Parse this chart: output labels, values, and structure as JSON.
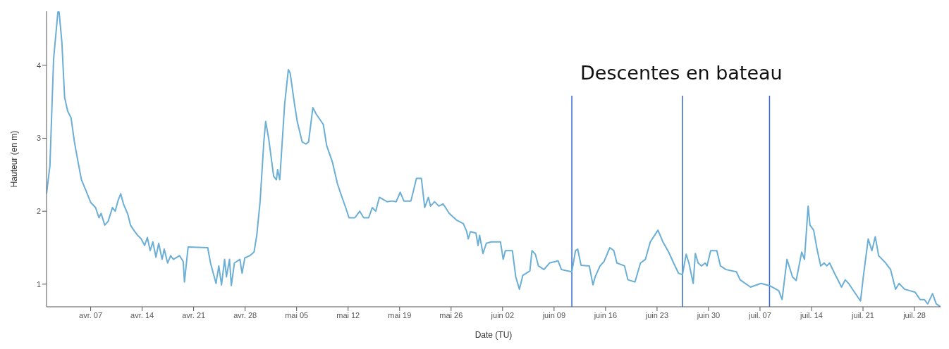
{
  "chart_data": {
    "type": "line",
    "xlabel": "Date (TU)",
    "ylabel": "Hauteur (en m)",
    "annotations": [
      "Descentes en bateau"
    ],
    "xlim": [
      "--04-01T00:00",
      "--07-31T13:00"
    ],
    "xticks": [
      {
        "value": "--04-07",
        "label": "avr. 07"
      },
      {
        "value": "--04-14",
        "label": "avr. 14"
      },
      {
        "value": "--04-21",
        "label": "avr. 21"
      },
      {
        "value": "--04-28",
        "label": "avr. 28"
      },
      {
        "value": "--05-05",
        "label": "mai 05"
      },
      {
        "value": "--05-12",
        "label": "mai 12"
      },
      {
        "value": "--05-19",
        "label": "mai 19"
      },
      {
        "value": "--05-26",
        "label": "mai 26"
      },
      {
        "value": "--06-02",
        "label": "juin 02"
      },
      {
        "value": "--06-09",
        "label": "juin 09"
      },
      {
        "value": "--06-16",
        "label": "juin 16"
      },
      {
        "value": "--06-23",
        "label": "juin 23"
      },
      {
        "value": "--06-30",
        "label": "juin 30"
      },
      {
        "value": "--07-07",
        "label": "juil. 07"
      },
      {
        "value": "--07-14",
        "label": "juil. 14"
      },
      {
        "value": "--07-21",
        "label": "juil. 21"
      },
      {
        "value": "--07-28",
        "label": "juil. 28"
      }
    ],
    "ylim": [
      0.69,
      4.74
    ],
    "yticks": [
      1,
      2,
      3,
      4
    ],
    "grid": false,
    "legend": false,
    "marker": "none",
    "line_style": "solid",
    "ref_lines": [
      {
        "axis": "x",
        "value": "--06-11T10:00",
        "color": "#3366cc"
      },
      {
        "axis": "x",
        "value": "--06-26T11:00",
        "color": "#3366cc"
      },
      {
        "axis": "x",
        "value": "--07-08T07:00",
        "color": "#3366cc"
      }
    ],
    "series": [
      {
        "color": "#6baed6",
        "x": [
          "--04-01T00:00",
          "--04-01T11:00",
          "--04-01T23:00",
          "--04-02T13:00",
          "--04-02T17:00",
          "--04-03T02:00",
          "--04-03T11:00",
          "--04-03T21:00",
          "--04-04T08:00",
          "--04-04T19:00",
          "--04-05T07:00",
          "--04-05T18:00",
          "--04-06T08:00",
          "--04-07T00:00",
          "--04-07T16:00",
          "--04-08T03:00",
          "--04-08T10:00",
          "--04-08T22:00",
          "--04-09T09:00",
          "--04-09T23:00",
          "--04-10T08:00",
          "--04-10T17:00",
          "--04-11T02:00",
          "--04-11T11:00",
          "--04-12T01:00",
          "--04-12T10:00",
          "--04-13T00:00",
          "--04-13T09:00",
          "--04-13T21:00",
          "--04-14T08:00",
          "--04-14T17:00",
          "--04-15T02:00",
          "--04-15T11:00",
          "--04-15T21:00",
          "--04-16T06:00",
          "--04-16T17:00",
          "--04-17T00:00",
          "--04-17T11:00",
          "--04-17T21:00",
          "--04-18T06:00",
          "--04-19T02:00",
          "--04-19T14:00",
          "--04-19T18:00",
          "--04-20T06:00",
          "--04-22T22:00",
          "--04-23T07:00",
          "--04-23T16:00",
          "--04-24T01:00",
          "--04-24T10:00",
          "--04-24T19:00",
          "--04-25T05:00",
          "--04-25T11:00",
          "--04-25T21:00",
          "--04-26T03:00",
          "--04-26T13:00",
          "--04-27T07:00",
          "--04-27T14:00",
          "--04-27T23:00",
          "--04-28T15:00",
          "--04-29T05:00",
          "--04-29T14:00",
          "--04-30T01:00",
          "--04-30T13:00",
          "--04-30T19:00",
          "--05-01T05:00",
          "--05-01T21:00",
          "--05-02T06:00",
          "--05-02T10:00",
          "--05-02T17:00",
          "--05-03T09:00",
          "--05-03T21:00",
          "--05-04T03:00",
          "--05-04T17:00",
          "--05-05T02:00",
          "--05-05T18:00",
          "--05-06T06:00",
          "--05-06T15:00",
          "--05-07T05:00",
          "--05-07T16:00",
          "--05-08T15:00",
          "--05-09T02:00",
          "--05-09T21:00",
          "--05-10T13:00",
          "--05-11T00:00",
          "--05-11T16:00",
          "--05-12T03:00",
          "--05-12T22:00",
          "--05-13T14:00",
          "--05-14T03:00",
          "--05-14T19:00",
          "--05-15T07:00",
          "--05-15T18:00",
          "--05-16T06:00",
          "--05-17T07:00",
          "--05-17T23:00",
          "--05-18T13:00",
          "--05-19T02:00",
          "--05-19T14:00",
          "--05-20T13:00",
          "--05-21T07:00",
          "--05-21T23:00",
          "--05-22T10:00",
          "--05-22T22:00",
          "--05-23T05:00",
          "--05-23T18:00",
          "--05-24T08:00",
          "--05-24T22:00",
          "--05-25T18:00",
          "--05-26T17:00",
          "--05-27T16:00",
          "--05-28T03:00",
          "--05-28T08:00",
          "--05-28T15:00",
          "--05-29T09:00",
          "--05-29T16:00",
          "--05-29T21:00",
          "--05-30T08:00",
          "--05-30T19:00",
          "--05-31T11:00",
          "--06-01T17:00",
          "--06-02T02:00",
          "--06-02T09:00",
          "--06-03T08:00",
          "--06-03T19:00",
          "--06-04T07:00",
          "--06-04T18:00",
          "--06-05T17:00",
          "--06-06T00:00",
          "--06-06T11:00",
          "--06-06T21:00",
          "--06-07T15:00",
          "--06-08T09:00",
          "--06-09T13:00",
          "--06-10T00:00",
          "--06-11T10:00",
          "--06-11T22:00",
          "--06-12T05:00",
          "--06-12T16:00",
          "--06-13T19:00",
          "--06-14T07:00",
          "--06-14T14:00",
          "--06-15T06:00",
          "--06-15T19:00",
          "--06-16T14:00",
          "--06-17T03:00",
          "--06-17T13:00",
          "--06-18T14:00",
          "--06-19T01:00",
          "--06-20T00:00",
          "--06-20T18:00",
          "--06-21T10:00",
          "--06-22T02:00",
          "--06-23T03:00",
          "--06-23T19:00",
          "--06-24T14:00",
          "--06-25T06:00",
          "--06-25T22:00",
          "--06-26T11:00",
          "--06-26T23:00",
          "--06-27T08:00",
          "--06-27T22:00",
          "--06-28T05:00",
          "--06-28T14:00",
          "--06-29T01:00",
          "--06-29T13:00",
          "--06-29T19:00",
          "--06-30T07:00",
          "--07-01T03:00",
          "--07-01T15:00",
          "--07-02T09:00",
          "--07-03T19:00",
          "--07-04T07:00",
          "--07-05T17:00",
          "--07-07T03:00",
          "--07-08T07:00",
          "--07-09T13:00",
          "--07-10T00:00",
          "--07-10T16:00",
          "--07-11T10:00",
          "--07-11T22:00",
          "--07-12T16:00",
          "--07-13T01:00",
          "--07-13T13:00",
          "--07-13T19:00",
          "--07-14T07:00",
          "--07-14T18:00",
          "--07-15T06:00",
          "--07-15T17:00",
          "--07-16T02:00",
          "--07-16T11:00",
          "--07-17T03:00",
          "--07-18T02:00",
          "--07-18T14:00",
          "--07-19T01:00",
          "--07-19T17:00",
          "--07-20T16:00",
          "--07-21T01:00",
          "--07-21T17:00",
          "--07-22T05:00",
          "--07-22T16:00",
          "--07-23T03:00",
          "--07-24T02:00",
          "--07-24T18:00",
          "--07-25T10:00",
          "--07-25T22:00",
          "--07-26T16:00",
          "--07-28T02:00",
          "--07-28T18:00",
          "--07-29T08:00",
          "--07-29T19:00",
          "--07-30T11:00",
          "--07-30T23:00",
          "--07-31T13:00"
        ],
        "values": [
          2.24,
          2.62,
          4.08,
          4.73,
          4.73,
          4.32,
          3.56,
          3.37,
          3.28,
          2.95,
          2.67,
          2.43,
          2.29,
          2.12,
          2.05,
          1.91,
          1.97,
          1.81,
          1.86,
          2.05,
          2.0,
          2.14,
          2.24,
          2.1,
          1.96,
          1.81,
          1.72,
          1.67,
          1.62,
          1.53,
          1.64,
          1.46,
          1.58,
          1.37,
          1.56,
          1.34,
          1.48,
          1.29,
          1.39,
          1.34,
          1.39,
          1.31,
          1.03,
          1.51,
          1.5,
          1.29,
          1.15,
          1.01,
          1.25,
          0.99,
          1.34,
          1.1,
          1.34,
          0.98,
          1.29,
          1.34,
          1.15,
          1.36,
          1.39,
          1.44,
          1.67,
          2.14,
          2.95,
          3.23,
          2.99,
          2.48,
          2.43,
          2.57,
          2.43,
          3.47,
          3.94,
          3.89,
          3.47,
          3.23,
          2.95,
          2.92,
          2.95,
          3.42,
          3.33,
          3.19,
          2.9,
          2.67,
          2.38,
          2.24,
          2.05,
          1.91,
          1.91,
          2.0,
          1.91,
          1.91,
          2.05,
          2.0,
          2.19,
          2.13,
          2.14,
          2.13,
          2.26,
          2.14,
          2.14,
          2.45,
          2.45,
          2.05,
          2.19,
          2.07,
          2.13,
          2.07,
          2.1,
          1.97,
          1.88,
          1.83,
          1.72,
          1.62,
          1.72,
          1.7,
          1.53,
          1.67,
          1.42,
          1.56,
          1.58,
          1.58,
          1.34,
          1.46,
          1.46,
          1.1,
          0.93,
          1.12,
          1.18,
          1.46,
          1.41,
          1.25,
          1.2,
          1.29,
          1.32,
          1.2,
          1.17,
          1.46,
          1.48,
          1.26,
          1.25,
          0.99,
          1.1,
          1.25,
          1.31,
          1.5,
          1.46,
          1.29,
          1.25,
          1.06,
          1.03,
          1.29,
          1.34,
          1.58,
          1.74,
          1.58,
          1.44,
          1.29,
          1.15,
          1.13,
          1.41,
          1.29,
          1.01,
          1.42,
          1.29,
          1.25,
          1.29,
          1.25,
          1.46,
          1.46,
          1.25,
          1.2,
          1.17,
          1.06,
          0.96,
          1.01,
          0.98,
          0.91,
          0.79,
          1.34,
          1.1,
          1.05,
          1.44,
          1.34,
          2.07,
          1.81,
          1.74,
          1.48,
          1.25,
          1.29,
          1.25,
          1.29,
          1.15,
          0.96,
          1.06,
          1.01,
          0.91,
          0.77,
          1.1,
          1.62,
          1.46,
          1.65,
          1.39,
          1.29,
          1.2,
          0.93,
          1.01,
          0.93,
          0.89,
          0.79,
          0.79,
          0.73,
          0.87,
          0.73,
          0.69
        ]
      }
    ]
  }
}
